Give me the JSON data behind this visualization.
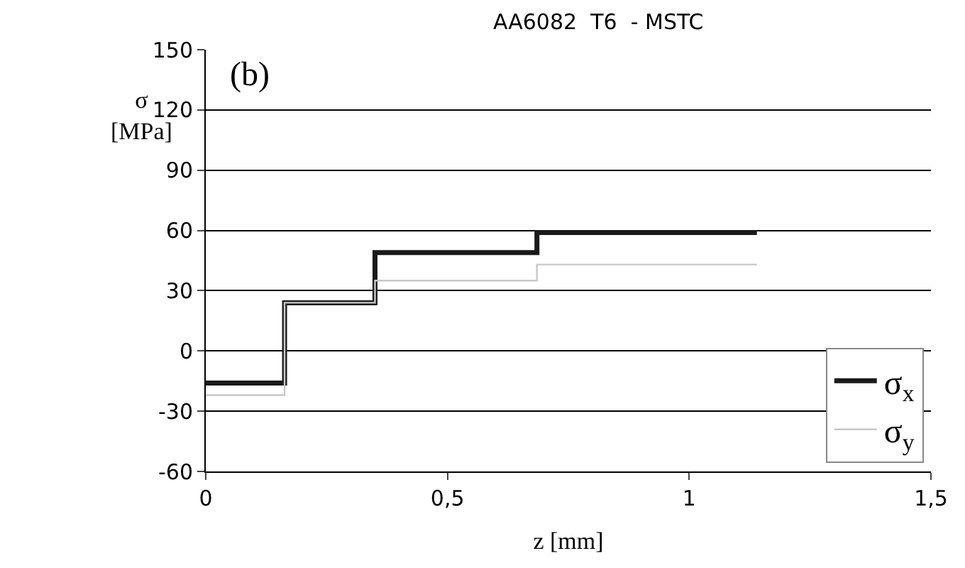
{
  "chart_data": {
    "type": "step",
    "title": "AA6082  T6  - MSTC",
    "xlabel": "z [mm]",
    "ylabel": "σ\n[MPa]",
    "annotations": [
      "(b)"
    ],
    "series": [
      {
        "name": "σ$_{x}$",
        "color": "#1a1a1a",
        "x": [
          0,
          0.163,
          0.35,
          0.685,
          1.14
        ],
        "values": [
          -16,
          24,
          49,
          59,
          59
        ]
      },
      {
        "name": "σ$_{y}$",
        "color": "#c8c8c8",
        "x": [
          0,
          0.163,
          0.35,
          0.685,
          1.14
        ],
        "values": [
          -22,
          24,
          35,
          43,
          43
        ]
      }
    ],
    "xlim": [
      0,
      1.5
    ],
    "xticks": [
      0,
      {
        "value": 0.5,
        "label": "0,5"
      },
      1,
      {
        "value": 1.5,
        "label": "1,5"
      }
    ],
    "ylim": [
      -60,
      150
    ],
    "yticks": [
      -60,
      -30,
      0,
      30,
      60,
      90,
      120,
      150
    ],
    "grid": "y",
    "legend": "bottom right"
  }
}
